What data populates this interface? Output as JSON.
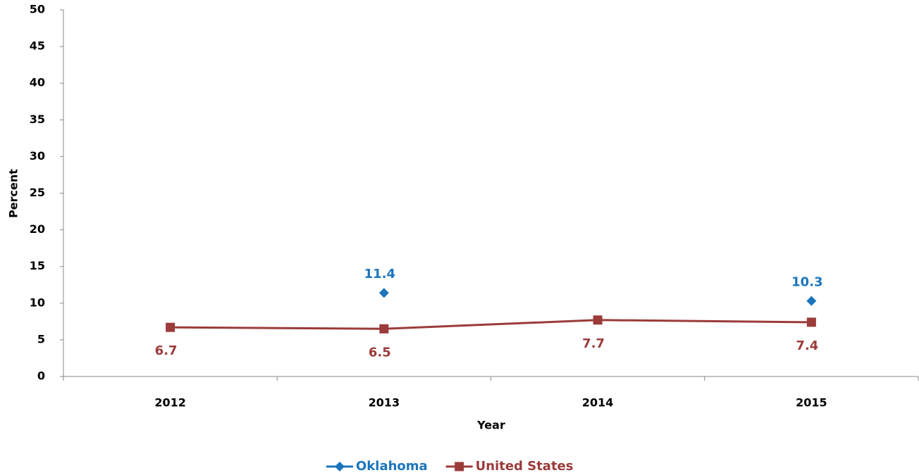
{
  "chart_data": {
    "type": "line",
    "y_label": "Percent",
    "x_label": "Year",
    "categories": [
      "2012",
      "2013",
      "2014",
      "2015"
    ],
    "series": [
      {
        "name": "Oklahoma",
        "color": "#1b75bc",
        "marker": "diamond",
        "label_position": "above",
        "values": [
          null,
          11.4,
          null,
          10.3
        ]
      },
      {
        "name": "United States",
        "color": "#9b3b3a",
        "marker": "square",
        "label_position": "below",
        "values": [
          6.7,
          6.5,
          7.7,
          7.4
        ]
      }
    ],
    "ylim": [
      0,
      50
    ],
    "yticks": [
      0,
      5,
      10,
      15,
      20,
      25,
      30,
      35,
      40,
      45,
      50
    ],
    "grid": false,
    "legend": "bottom"
  }
}
